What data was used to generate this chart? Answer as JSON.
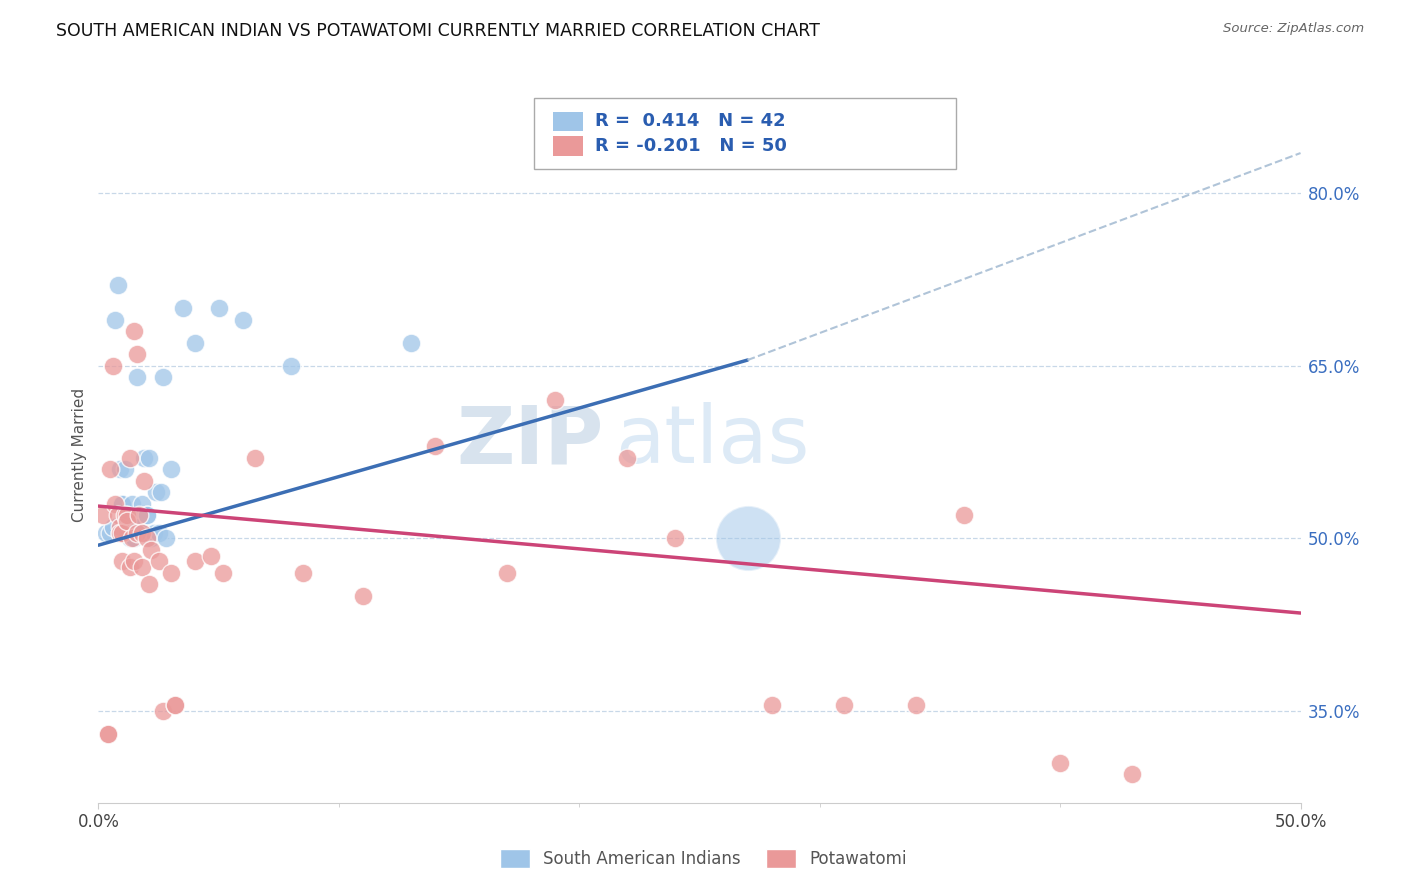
{
  "title": "SOUTH AMERICAN INDIAN VS POTAWATOMI CURRENTLY MARRIED CORRELATION CHART",
  "source": "Source: ZipAtlas.com",
  "ylabel": "Currently Married",
  "ylabel_right_labels": [
    "35.0%",
    "50.0%",
    "65.0%",
    "80.0%"
  ],
  "ylabel_right_values": [
    0.35,
    0.5,
    0.65,
    0.8
  ],
  "blue_R": "0.414",
  "blue_N": "42",
  "pink_R": "-0.201",
  "pink_N": "50",
  "legend_label_blue": "South American Indians",
  "legend_label_pink": "Potawatomi",
  "blue_color": "#9fc5e8",
  "pink_color": "#ea9999",
  "blue_line_color": "#3c6eb4",
  "pink_line_color": "#cc4477",
  "dashed_line_color": "#b0c4d8",
  "watermark_zip": "ZIP",
  "watermark_atlas": "atlas",
  "blue_scatter_x": [
    0.003,
    0.005,
    0.006,
    0.007,
    0.008,
    0.009,
    0.009,
    0.01,
    0.01,
    0.011,
    0.011,
    0.012,
    0.012,
    0.013,
    0.013,
    0.014,
    0.015,
    0.015,
    0.016,
    0.016,
    0.017,
    0.018,
    0.018,
    0.019,
    0.02,
    0.02,
    0.021,
    0.022,
    0.023,
    0.024,
    0.025,
    0.026,
    0.027,
    0.028,
    0.03,
    0.035,
    0.04,
    0.05,
    0.06,
    0.08,
    0.13,
    0.27
  ],
  "blue_scatter_y": [
    0.505,
    0.505,
    0.51,
    0.69,
    0.72,
    0.56,
    0.505,
    0.53,
    0.53,
    0.56,
    0.505,
    0.52,
    0.505,
    0.51,
    0.5,
    0.53,
    0.505,
    0.5,
    0.64,
    0.52,
    0.51,
    0.53,
    0.505,
    0.57,
    0.52,
    0.52,
    0.57,
    0.5,
    0.505,
    0.54,
    0.505,
    0.54,
    0.64,
    0.5,
    0.56,
    0.7,
    0.67,
    0.7,
    0.69,
    0.65,
    0.67,
    0.5
  ],
  "blue_scatter_size_special": [
    0,
    0,
    0,
    0,
    0,
    0,
    0,
    0,
    0,
    0,
    0,
    0,
    0,
    0,
    0,
    0,
    0,
    0,
    0,
    0,
    0,
    0,
    0,
    0,
    0,
    0,
    0,
    0,
    0,
    0,
    0,
    0,
    0,
    0,
    0,
    0,
    0,
    0,
    0,
    0,
    0,
    1
  ],
  "pink_scatter_x": [
    0.002,
    0.004,
    0.004,
    0.005,
    0.006,
    0.007,
    0.008,
    0.009,
    0.009,
    0.01,
    0.01,
    0.011,
    0.012,
    0.012,
    0.013,
    0.013,
    0.014,
    0.015,
    0.015,
    0.016,
    0.016,
    0.017,
    0.018,
    0.018,
    0.019,
    0.02,
    0.021,
    0.022,
    0.025,
    0.027,
    0.03,
    0.032,
    0.032,
    0.04,
    0.047,
    0.052,
    0.065,
    0.085,
    0.11,
    0.14,
    0.17,
    0.19,
    0.22,
    0.24,
    0.28,
    0.31,
    0.34,
    0.36,
    0.4,
    0.43
  ],
  "pink_scatter_y": [
    0.52,
    0.33,
    0.33,
    0.56,
    0.65,
    0.53,
    0.52,
    0.51,
    0.505,
    0.505,
    0.48,
    0.52,
    0.52,
    0.515,
    0.57,
    0.475,
    0.5,
    0.48,
    0.68,
    0.66,
    0.505,
    0.52,
    0.505,
    0.475,
    0.55,
    0.5,
    0.46,
    0.49,
    0.48,
    0.35,
    0.47,
    0.355,
    0.355,
    0.48,
    0.485,
    0.47,
    0.57,
    0.47,
    0.45,
    0.58,
    0.47,
    0.62,
    0.57,
    0.5,
    0.355,
    0.355,
    0.355,
    0.52,
    0.305,
    0.295
  ],
  "xmin": 0.0,
  "xmax": 0.5,
  "ymin": 0.27,
  "ymax": 0.875,
  "blue_trendline_x": [
    0.0,
    0.27
  ],
  "blue_trendline_y": [
    0.494,
    0.655
  ],
  "pink_trendline_x": [
    0.0,
    0.5
  ],
  "pink_trendline_y": [
    0.528,
    0.435
  ],
  "dashed_trendline_x": [
    0.27,
    0.5
  ],
  "dashed_trendline_y": [
    0.655,
    0.835
  ]
}
